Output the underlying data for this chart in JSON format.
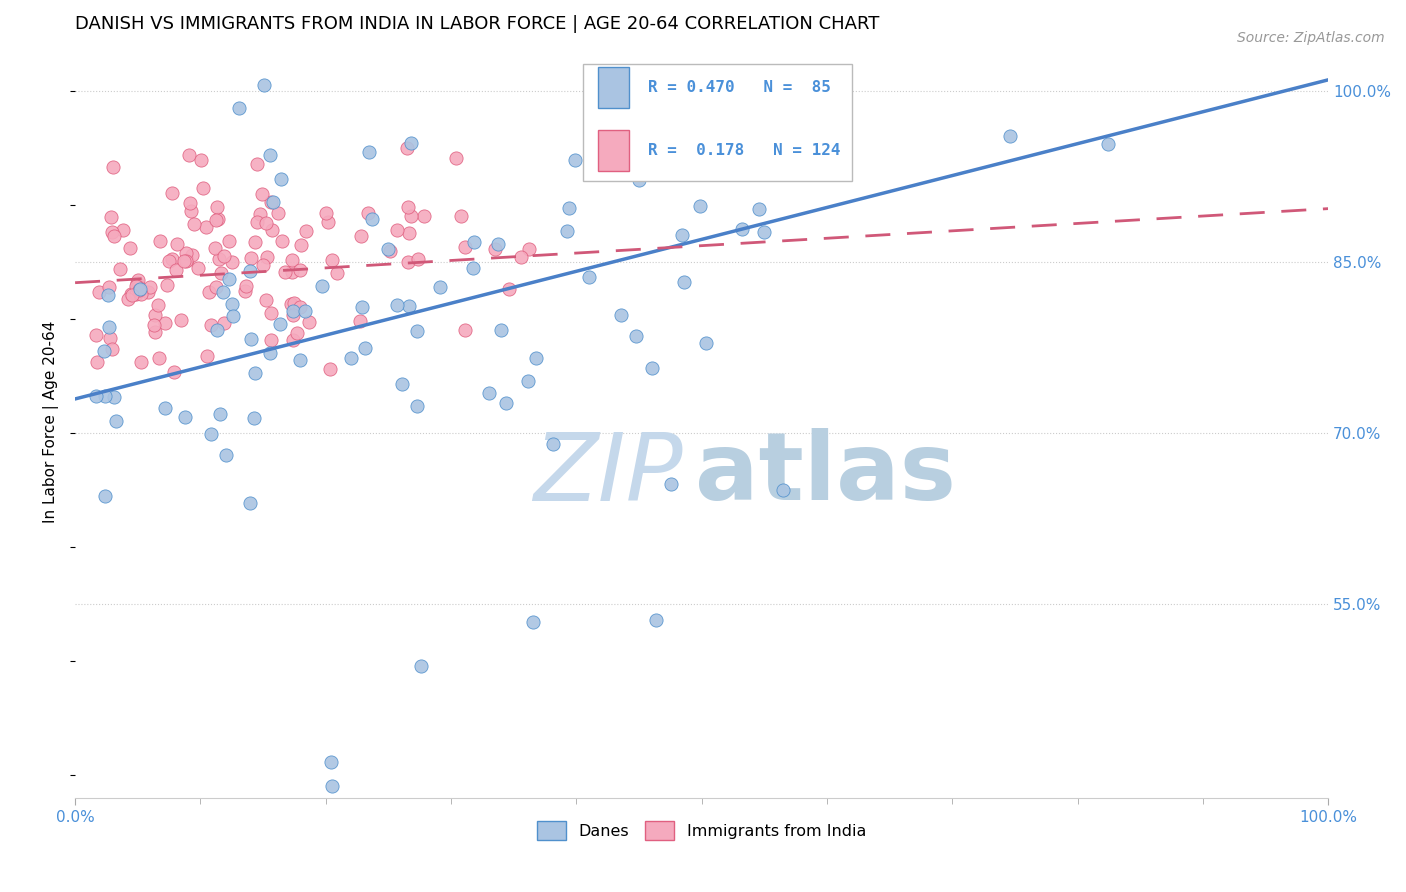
{
  "title": "DANISH VS IMMIGRANTS FROM INDIA IN LABOR FORCE | AGE 20-64 CORRELATION CHART",
  "source": "Source: ZipAtlas.com",
  "ylabel": "In Labor Force | Age 20-64",
  "x_min": 0.0,
  "x_max": 1.0,
  "y_min": 0.38,
  "y_max": 1.04,
  "yticks": [
    0.55,
    0.7,
    0.85,
    1.0
  ],
  "ytick_labels": [
    "55.0%",
    "70.0%",
    "85.0%",
    "100.0%"
  ],
  "blue_R": 0.47,
  "blue_N": 85,
  "pink_R": 0.178,
  "pink_N": 124,
  "blue_color": "#aac4e2",
  "blue_edge_color": "#5090cc",
  "pink_color": "#f5aabe",
  "pink_edge_color": "#e06080",
  "blue_line_color": "#4a80c8",
  "pink_line_color": "#d05878",
  "legend_text_color": "#4a90d9",
  "tick_color": "#4a90d9",
  "background_color": "#ffffff",
  "watermark_zip_color": "#c5d8eb",
  "watermark_atlas_color": "#b8cfe0",
  "title_fontsize": 13,
  "axis_label_fontsize": 11,
  "tick_fontsize": 11,
  "source_fontsize": 10,
  "blue_slope": 0.28,
  "blue_intercept": 0.73,
  "pink_slope": 0.065,
  "pink_intercept": 0.832
}
